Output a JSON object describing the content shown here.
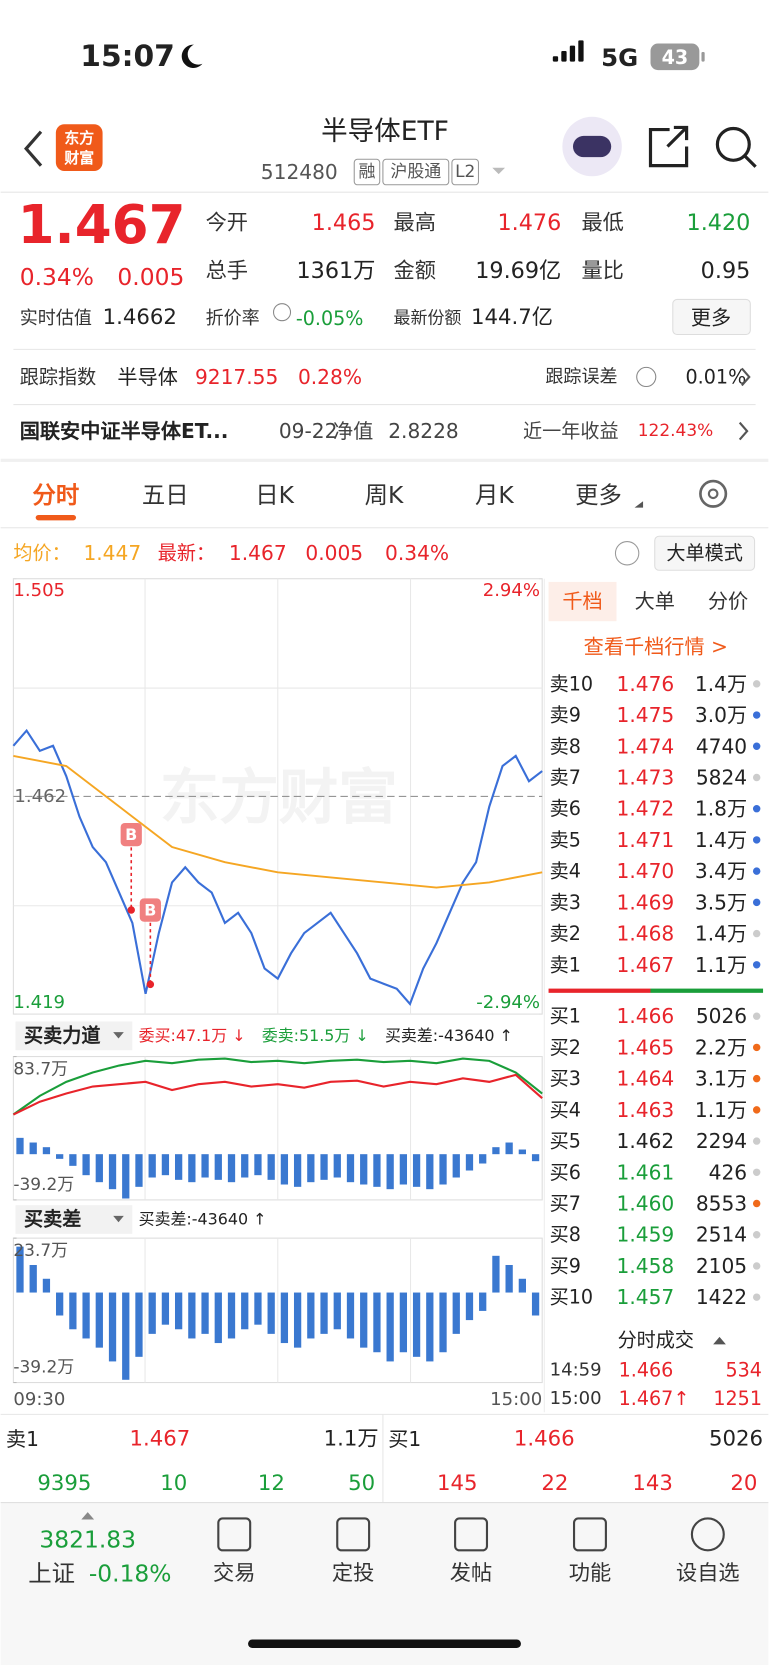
{
  "status": {
    "time": "15:07",
    "network": "5G",
    "battery": "43"
  },
  "header": {
    "logo": [
      "东方",
      "财富"
    ],
    "title": "半导体ETF",
    "code": "512480",
    "badges": [
      "融",
      "沪股通",
      "L2"
    ]
  },
  "quote": {
    "price": "1.467",
    "pct": "0.34%",
    "change": "0.005",
    "stats": [
      [
        "今开",
        "1.465",
        "#e8242b"
      ],
      [
        "最高",
        "1.476",
        "#e8242b"
      ],
      [
        "最低",
        "1.420",
        "#1a9e3a"
      ],
      [
        "总手",
        "1361万",
        "#222"
      ],
      [
        "金额",
        "19.69亿",
        "#222"
      ],
      [
        "量比",
        "0.95",
        "#222"
      ]
    ],
    "iopv_label": "实时估值",
    "iopv": "1.4662",
    "discount_label": "折价率",
    "discount": "-0.05%",
    "shares_label": "最新份额",
    "shares": "144.7亿",
    "more": "更多"
  },
  "tracking": {
    "label": "跟踪指数",
    "index": "半导体",
    "value": "9217.55",
    "pct": "0.28%",
    "error_label": "跟踪误差",
    "error": "0.01%"
  },
  "fund": {
    "name": "国联安中证半导体ET...",
    "date": "09-22",
    "nav_label": "净值",
    "nav": "2.8228",
    "return_label": "近一年收益",
    "return": "122.43%"
  },
  "tabs": [
    "分时",
    "五日",
    "日K",
    "周K",
    "月K",
    "更多"
  ],
  "legend": {
    "avg_label": "均价：",
    "avg": "1.447",
    "last_label": "最新：",
    "last": "1.467",
    "change": "0.005",
    "pct": "0.34%",
    "mode": "大单模式"
  },
  "chart_data": [
    {
      "type": "line",
      "watermark": "东方财富",
      "ylim": [
        1.419,
        1.505
      ],
      "yticks": [
        1.505,
        1.419
      ],
      "y2lim": [
        -2.94,
        2.94
      ],
      "y2ticks": [
        {
          "value": 2.94,
          "label": "2.94%"
        },
        {
          "value": -2.94,
          "label": "-2.94%"
        }
      ],
      "base": 1.462,
      "markers": [
        "B",
        "B"
      ],
      "x_labels": [
        "09:30",
        "15:00"
      ],
      "series": [
        {
          "color": "#3a6fd8",
          "values": [
            1.472,
            1.475,
            1.471,
            1.472,
            1.466,
            1.458,
            1.452,
            1.449,
            1.443,
            1.437,
            1.423,
            1.435,
            1.445,
            1.448,
            1.445,
            1.443,
            1.437,
            1.439,
            1.435,
            1.428,
            1.426,
            1.431,
            1.435,
            1.437,
            1.439,
            1.435,
            1.431,
            1.426,
            1.425,
            1.424,
            1.421,
            1.428,
            1.433,
            1.439,
            1.445,
            1.449,
            1.46,
            1.468,
            1.47,
            1.465,
            1.467
          ]
        },
        {
          "color": "#f5a623",
          "values": [
            1.47,
            1.468,
            1.46,
            1.452,
            1.449,
            1.447,
            1.446,
            1.445,
            1.444,
            1.445,
            1.447
          ]
        }
      ]
    },
    {
      "type": "bar-line",
      "title": "买卖力道",
      "stats": [
        [
          "委买:47.1万 ↓",
          "#e8242b"
        ],
        [
          "委卖:51.5万 ↓",
          "#1a9e3a"
        ],
        [
          "买卖差:-43640 ↑",
          "#222"
        ]
      ],
      "ylim": [
        -39.2,
        83.7
      ],
      "yticks": [
        {
          "value": 83.7,
          "label": "83.7万"
        },
        {
          "value": -39.2,
          "label": "-39.2万"
        }
      ],
      "series": [
        {
          "color": "#1a9e3a",
          "values": [
            34,
            50,
            62,
            70,
            76,
            80,
            78,
            81,
            82,
            79,
            80,
            78,
            80,
            81,
            79,
            80,
            78,
            82,
            80,
            70,
            52
          ]
        },
        {
          "color": "#e8242b",
          "values": [
            34,
            45,
            52,
            58,
            60,
            62,
            55,
            60,
            62,
            58,
            60,
            57,
            62,
            63,
            58,
            62,
            60,
            65,
            62,
            68,
            48
          ]
        }
      ],
      "bar_color": "#3a78d0",
      "bars": [
        14,
        10,
        6,
        -4,
        -10,
        -18,
        -24,
        -30,
        -38,
        -28,
        -20,
        -18,
        -22,
        -24,
        -20,
        -22,
        -24,
        -20,
        -18,
        -22,
        -26,
        -28,
        -24,
        -22,
        -20,
        -24,
        -26,
        -28,
        -30,
        -26,
        -28,
        -30,
        -26,
        -20,
        -14,
        -8,
        6,
        10,
        4,
        -6
      ]
    },
    {
      "type": "bar",
      "title": "买卖差",
      "stats": [
        [
          "买卖差:-43640 ↑",
          "#222"
        ]
      ],
      "ylim": [
        -39.2,
        23.7
      ],
      "yticks": [
        {
          "value": 23.7,
          "label": "23.7万"
        },
        {
          "value": -39.2,
          "label": "-39.2万"
        }
      ],
      "color": "#3a78d0",
      "values": [
        20,
        12,
        6,
        -10,
        -16,
        -20,
        -24,
        -30,
        -38,
        -28,
        -18,
        -14,
        -16,
        -20,
        -18,
        -22,
        -20,
        -16,
        -14,
        -18,
        -22,
        -24,
        -20,
        -18,
        -16,
        -20,
        -24,
        -26,
        -30,
        -26,
        -28,
        -30,
        -26,
        -18,
        -12,
        -8,
        16,
        12,
        6,
        -10
      ]
    }
  ],
  "book": {
    "tabs": [
      "千档",
      "大单",
      "分价"
    ],
    "link": "查看千档行情 >",
    "asks": [
      {
        "level": "卖10",
        "price": "1.476",
        "vol": "1.4万",
        "color": "#e8242b",
        "dot": "#ccc"
      },
      {
        "level": "卖9",
        "price": "1.475",
        "vol": "3.0万",
        "color": "#e8242b",
        "dot": "#3a6fd8"
      },
      {
        "level": "卖8",
        "price": "1.474",
        "vol": "4740",
        "color": "#e8242b",
        "dot": "#3a6fd8"
      },
      {
        "level": "卖7",
        "price": "1.473",
        "vol": "5824",
        "color": "#e8242b",
        "dot": "#ccc"
      },
      {
        "level": "卖6",
        "price": "1.472",
        "vol": "1.8万",
        "color": "#e8242b",
        "dot": "#3a6fd8"
      },
      {
        "level": "卖5",
        "price": "1.471",
        "vol": "1.4万",
        "color": "#e8242b",
        "dot": "#3a6fd8"
      },
      {
        "level": "卖4",
        "price": "1.470",
        "vol": "3.4万",
        "color": "#e8242b",
        "dot": "#3a6fd8"
      },
      {
        "level": "卖3",
        "price": "1.469",
        "vol": "3.5万",
        "color": "#e8242b",
        "dot": "#3a6fd8"
      },
      {
        "level": "卖2",
        "price": "1.468",
        "vol": "1.4万",
        "color": "#e8242b",
        "dot": "#ccc"
      },
      {
        "level": "卖1",
        "price": "1.467",
        "vol": "1.1万",
        "color": "#e8242b",
        "dot": "#3a6fd8"
      }
    ],
    "bids": [
      {
        "level": "买1",
        "price": "1.466",
        "vol": "5026",
        "color": "#e8242b",
        "dot": "#ccc"
      },
      {
        "level": "买2",
        "price": "1.465",
        "vol": "2.2万",
        "color": "#e8242b",
        "dot": "#f06a1a"
      },
      {
        "level": "买3",
        "price": "1.464",
        "vol": "3.1万",
        "color": "#e8242b",
        "dot": "#f06a1a"
      },
      {
        "level": "买4",
        "price": "1.463",
        "vol": "1.1万",
        "color": "#e8242b",
        "dot": "#f06a1a"
      },
      {
        "level": "买5",
        "price": "1.462",
        "vol": "2294",
        "color": "#222",
        "dot": "#ccc"
      },
      {
        "level": "买6",
        "price": "1.461",
        "vol": "426",
        "color": "#1a9e3a",
        "dot": "#ccc"
      },
      {
        "level": "买7",
        "price": "1.460",
        "vol": "8553",
        "color": "#1a9e3a",
        "dot": "#f06a1a"
      },
      {
        "level": "买8",
        "price": "1.459",
        "vol": "2514",
        "color": "#1a9e3a",
        "dot": "#ccc"
      },
      {
        "level": "买9",
        "price": "1.458",
        "vol": "2105",
        "color": "#1a9e3a",
        "dot": "#ccc"
      },
      {
        "level": "买10",
        "price": "1.457",
        "vol": "1422",
        "color": "#1a9e3a",
        "dot": "#ccc"
      }
    ],
    "trades_title": "分时成交",
    "trades": [
      [
        "14:59",
        "1.466",
        "534"
      ],
      [
        "15:00",
        "1.467↑",
        "1251"
      ]
    ]
  },
  "level1": {
    "ask": [
      "卖1",
      "1.467",
      "1.1万"
    ],
    "bid": [
      "买1",
      "1.466",
      "5026"
    ],
    "ask_ticks": [
      "9395",
      "10",
      "12",
      "50"
    ],
    "bid_ticks": [
      "145",
      "22",
      "143",
      "20"
    ]
  },
  "nav": {
    "index": "3821.83",
    "index_name": "上证",
    "index_pct": "-0.18%",
    "items": [
      "交易",
      "定投",
      "发帖",
      "功能",
      "设自选"
    ]
  }
}
